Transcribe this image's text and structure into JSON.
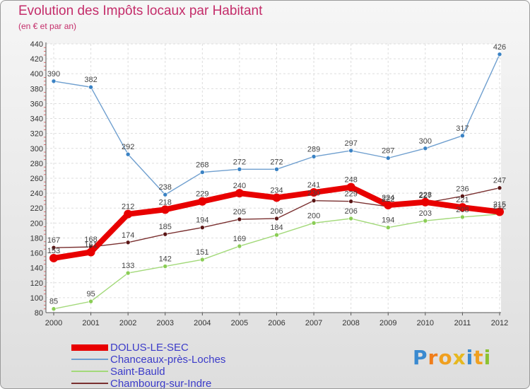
{
  "header": {
    "title": "Evolution des Impôts locaux par Habitant",
    "subtitle": "(en € et par an)"
  },
  "brand": {
    "letters": [
      "P",
      "r",
      "o",
      "x",
      "i",
      "t",
      "i"
    ]
  },
  "chart_data": {
    "type": "line",
    "title": "Evolution des Impôts locaux par Habitant",
    "subtitle": "(en € et par an)",
    "x": [
      "2000",
      "2001",
      "2002",
      "2003",
      "2004",
      "2005",
      "2006",
      "2007",
      "2008",
      "2009",
      "2010",
      "2011",
      "2012"
    ],
    "ylim": [
      80,
      440
    ],
    "yticks": [
      80,
      100,
      120,
      140,
      160,
      180,
      200,
      220,
      240,
      260,
      280,
      300,
      320,
      340,
      360,
      380,
      400,
      420,
      440
    ],
    "grid": true,
    "series": [
      {
        "name": "DOLUS-LE-SEC",
        "color": "#e80000",
        "values": [
          153,
          161,
          212,
          218,
          229,
          240,
          234,
          241,
          248,
          224,
          228,
          221,
          215
        ]
      },
      {
        "name": "Chanceaux-près-Loches",
        "color": "#6f9fcf",
        "marker": "#3a82c4",
        "values": [
          390,
          382,
          292,
          238,
          268,
          272,
          272,
          289,
          297,
          287,
          300,
          317,
          426
        ]
      },
      {
        "name": "Saint-Bauld",
        "color": "#a3d97a",
        "marker": "#8acd55",
        "values": [
          85,
          95,
          133,
          142,
          151,
          169,
          184,
          200,
          206,
          194,
          203,
          208,
          212
        ]
      },
      {
        "name": "Chambourg-sur-Indre",
        "color": "#7a3030",
        "marker": "#5a1515",
        "values": [
          167,
          168,
          174,
          185,
          194,
          205,
          206,
          230,
          229,
          222,
          227,
          236,
          247
        ]
      }
    ]
  }
}
